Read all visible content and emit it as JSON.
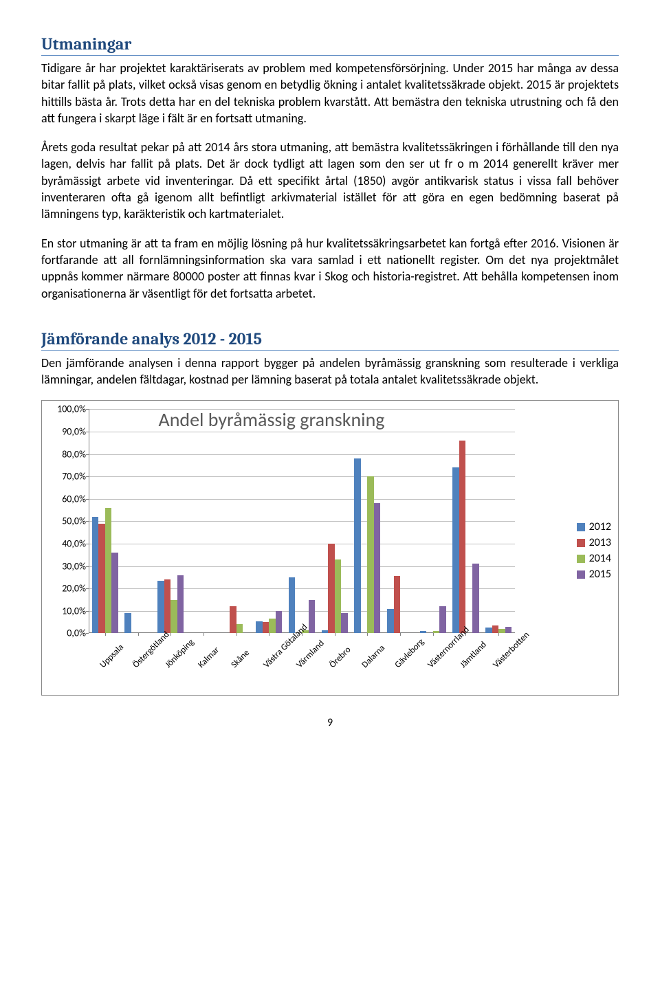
{
  "section1": {
    "title": "Utmaningar",
    "p1": "Tidigare år har projektet karaktäriserats av problem med kompetensförsörjning. Under 2015 har många av dessa bitar fallit på plats, vilket också visas genom en betydlig ökning i antalet kvalitetssäkrade objekt. 2015 är projektets hittills bästa år. Trots detta har en del tekniska problem kvarstått. Att bemästra den tekniska utrustning och få den att fungera i skarpt läge i fält är en fortsatt utmaning.",
    "p2": "Årets goda resultat pekar på att 2014 års stora utmaning, att bemästra kvalitetssäkringen i förhållande till den nya lagen, delvis har fallit på plats. Det är dock tydligt att lagen som den ser ut fr o m 2014 generellt kräver mer byråmässigt arbete vid inventeringar. Då ett specifikt årtal (1850) avgör antikvarisk status i vissa fall behöver inventeraren ofta gå igenom allt befintligt arkivmaterial istället för att göra en egen bedömning baserat på lämningens typ, karäkteristik och kartmaterialet.",
    "p3": "En stor utmaning är att ta fram en möjlig lösning på hur kvalitetssäkringsarbetet kan fortgå efter 2016. Visionen är fortfarande att all fornlämningsinformation ska vara samlad i ett nationellt register. Om det nya projektmålet uppnås kommer närmare 80000 poster att finnas kvar i Skog och historia-registret. Att behålla kompetensen inom organisationerna är väsentligt för det fortsatta arbetet."
  },
  "section2": {
    "title": "Jämförande analys 2012 - 2015",
    "p1": "Den jämförande analysen i denna rapport bygger på andelen byråmässig granskning som resulterade i verkliga lämningar, andelen fältdagar, kostnad per lämning baserat på  totala antalet kvalitetssäkrade objekt."
  },
  "chart": {
    "title": "Andel byråmässig granskning",
    "ymax": 100,
    "ytick_step": 10,
    "ytick_format_suffix": ",0%",
    "categories": [
      "Uppsala",
      "Östergötland",
      "Jönköping",
      "Kalmar",
      "Skåne",
      "Västra Götaland",
      "Värmland",
      "Örebro",
      "Dalarna",
      "Gävleborg",
      "Västernorrland",
      "Jämtland",
      "Västerbotten"
    ],
    "series": [
      {
        "label": "2012",
        "color": "#4f81bd",
        "values": [
          52,
          9,
          23.5,
          0,
          0,
          5.5,
          25,
          1.5,
          78,
          11,
          1,
          74,
          2.5
        ]
      },
      {
        "label": "2013",
        "color": "#c0504d",
        "values": [
          49,
          0,
          24,
          0,
          12,
          5,
          0,
          40,
          0,
          25.5,
          0,
          86,
          3.5
        ]
      },
      {
        "label": "2014",
        "color": "#9bbb59",
        "values": [
          56,
          0,
          15,
          0,
          4,
          6.5,
          1.5,
          33,
          70,
          0,
          1,
          0,
          2
        ]
      },
      {
        "label": "2015",
        "color": "#8064a2",
        "values": [
          36,
          0,
          26,
          0,
          0,
          10,
          15,
          9,
          58,
          0,
          12,
          31,
          3
        ]
      }
    ]
  },
  "page_number": "9"
}
